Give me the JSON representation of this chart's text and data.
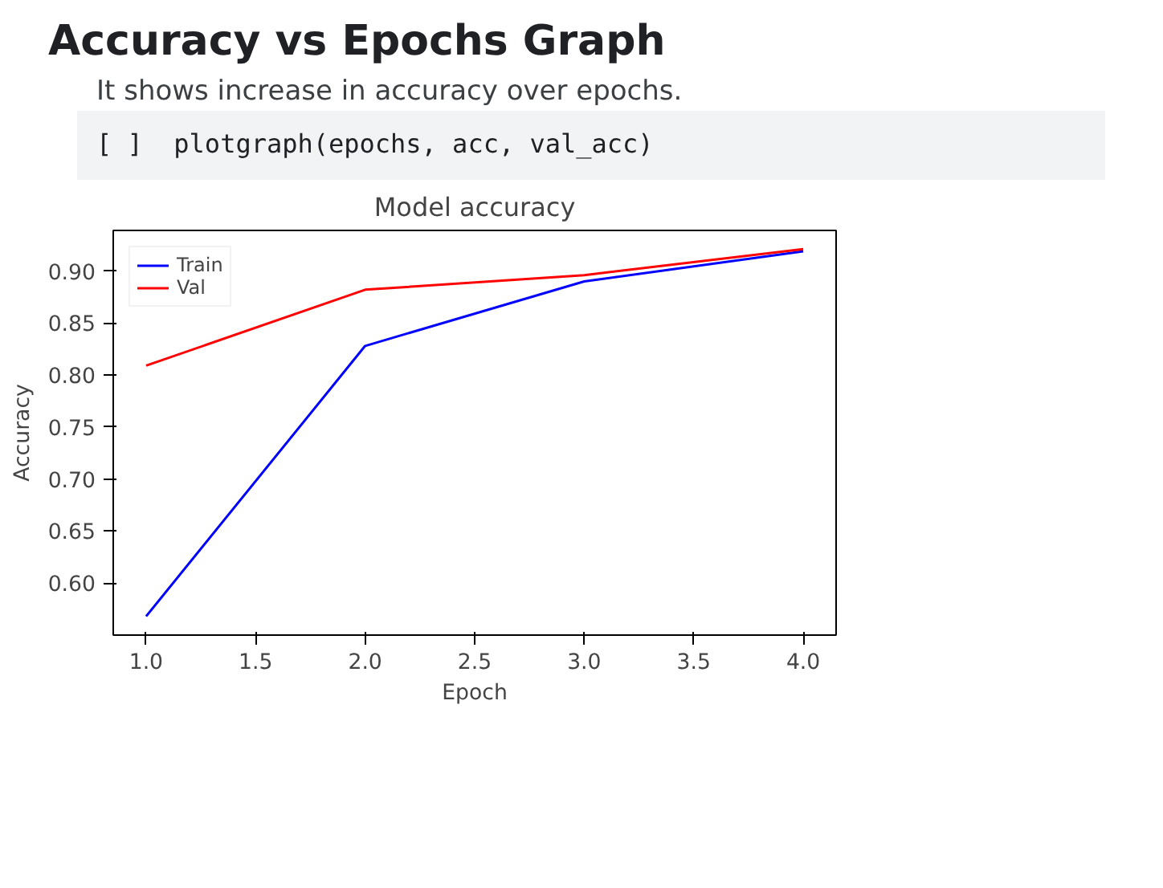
{
  "chart_data": {
    "type": "line",
    "title": "Model accuracy",
    "xlabel": "Epoch",
    "ylabel": "Accuracy",
    "annotations": [
      "Accuracy vs Epochs Graph",
      "It shows increase in accuracy over epochs.",
      "[ ]  plotgraph(epochs, acc, val_acc)"
    ],
    "x": [
      1,
      2,
      3,
      4
    ],
    "series": [
      {
        "name": "Train",
        "color": "#0000ff",
        "values": [
          0.568,
          0.828,
          0.89,
          0.919
        ]
      },
      {
        "name": "Val",
        "color": "#ff0000",
        "values": [
          0.809,
          0.882,
          0.896,
          0.921
        ]
      }
    ],
    "xlim": [
      0.85,
      4.15
    ],
    "ylim": [
      0.55,
      0.939
    ],
    "xticks": [
      {
        "value": 1,
        "label": "1.0"
      },
      1.5,
      {
        "value": 2,
        "label": "2.0"
      },
      2.5,
      {
        "value": 3,
        "label": "3.0"
      },
      3.5,
      {
        "value": 4,
        "label": "4.0"
      }
    ],
    "yticks": [
      {
        "value": 0.6,
        "label": "0.60"
      },
      0.65,
      {
        "value": 0.7,
        "label": "0.70"
      },
      0.75,
      {
        "value": 0.8,
        "label": "0.80"
      },
      0.85,
      {
        "value": 0.9,
        "label": "0.90"
      }
    ],
    "legend": "top left",
    "grid": false
  }
}
